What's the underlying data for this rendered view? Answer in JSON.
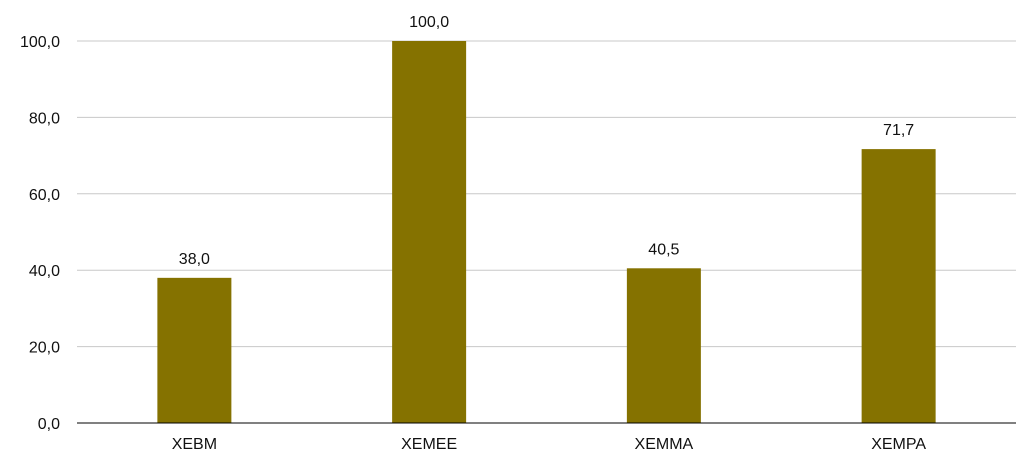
{
  "chart_data": {
    "type": "bar",
    "categories": [
      "XEBM",
      "XEMEE",
      "XEMMA",
      "XEMPA"
    ],
    "values": [
      38.0,
      100.0,
      40.5,
      71.7
    ],
    "data_labels": [
      "38,0",
      "100,0",
      "40,5",
      "71,7"
    ],
    "y_ticks": [
      0,
      20,
      40,
      60,
      80,
      100
    ],
    "y_tick_labels": [
      "0,0",
      "20,0",
      "40,0",
      "60,0",
      "80,0",
      "100,0"
    ],
    "ylim": [
      0,
      100
    ],
    "grid": true,
    "legend": "none",
    "title": "",
    "xlabel": "",
    "ylabel": "",
    "bar_color": "#857200"
  }
}
